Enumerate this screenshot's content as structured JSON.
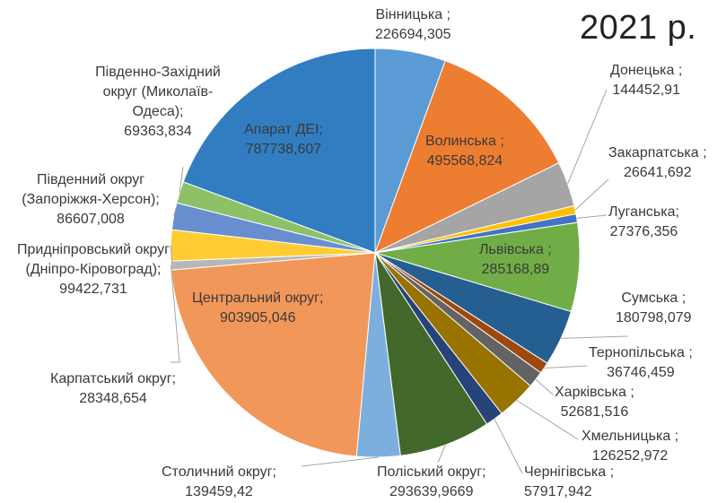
{
  "chart_data": {
    "type": "pie",
    "title": "2021 р.",
    "start_angle_deg": 0,
    "direction": "clockwise",
    "legend": "none",
    "slices": [
      {
        "key": "vinnytska",
        "name": "Вінницька ;",
        "value": 226694.305,
        "value_label": "226694,305",
        "color": "#5b9bd5"
      },
      {
        "key": "volynska",
        "name": "Волинська ;",
        "value": 495568.824,
        "value_label": "495568,824",
        "color": "#ed7d31"
      },
      {
        "key": "donetska",
        "name": "Донецька ;",
        "value": 144452.91,
        "value_label": "144452,91",
        "color": "#a5a5a5"
      },
      {
        "key": "zakarpatska",
        "name": "Закарпатська ;",
        "value": 26641.692,
        "value_label": "26641,692",
        "color": "#ffc000"
      },
      {
        "key": "luhanska",
        "name": "Луганська;",
        "value": 27376.356,
        "value_label": "27376,356",
        "color": "#4472c4"
      },
      {
        "key": "lvivska",
        "name": "Львівська ;",
        "value": 285168.89,
        "value_label": "285168,89",
        "color": "#70ad47"
      },
      {
        "key": "sumska",
        "name": "Сумська ;",
        "value": 180798.079,
        "value_label": "180798,079",
        "color": "#255e91"
      },
      {
        "key": "ternopilska",
        "name": "Тернопільська ;",
        "value": 36746.459,
        "value_label": "36746,459",
        "color": "#9e480e"
      },
      {
        "key": "kharkivska",
        "name": "Харківська ;",
        "value": 52681.516,
        "value_label": "52681,516",
        "color": "#636363"
      },
      {
        "key": "khmelnytska",
        "name": "Хмельницька ;",
        "value": 126252.972,
        "value_label": "126252,972",
        "color": "#997300"
      },
      {
        "key": "chernihivska",
        "name": "Чернігівська ;",
        "value": 57917.942,
        "value_label": "57917,942",
        "color": "#264478"
      },
      {
        "key": "poliskyi",
        "name": "Поліський округ;",
        "value": 293639.9669,
        "value_label": "293639,9669",
        "color": "#43682b"
      },
      {
        "key": "stolychnyi",
        "name": "Столичний округ;",
        "value": 139459.42,
        "value_label": "139459,42",
        "color": "#7cafdd"
      },
      {
        "key": "tsentralnyi",
        "name": "Центральний округ;",
        "value": 903905.046,
        "value_label": "903905,046",
        "color": "#f1975a"
      },
      {
        "key": "karpatskyi",
        "name": "Карпатський округ;",
        "value": 28348.654,
        "value_label": "28348,654",
        "color": "#b7b7b7"
      },
      {
        "key": "prydniprovskyi",
        "name": "Придніпровський округ (Дніпро-Кіровоград);",
        "value": 99422.731,
        "value_label": "99422,731",
        "color": "#ffcd33"
      },
      {
        "key": "pivdennyi",
        "name": "Південний округ (Запоріжжя-Херсон);",
        "value": 86607.008,
        "value_label": "86607,008",
        "color": "#698ed0"
      },
      {
        "key": "pivdenno_zakhidnyi",
        "name": "Південно-Західний округ (Миколаїв-Одеса);",
        "value": 69363.834,
        "value_label": "69363,834",
        "color": "#8cc168"
      },
      {
        "key": "aparat",
        "name": "Апарат ДЕІ;",
        "value": 787738.607,
        "value_label": "787738,607",
        "color": "#327dc2"
      }
    ]
  }
}
